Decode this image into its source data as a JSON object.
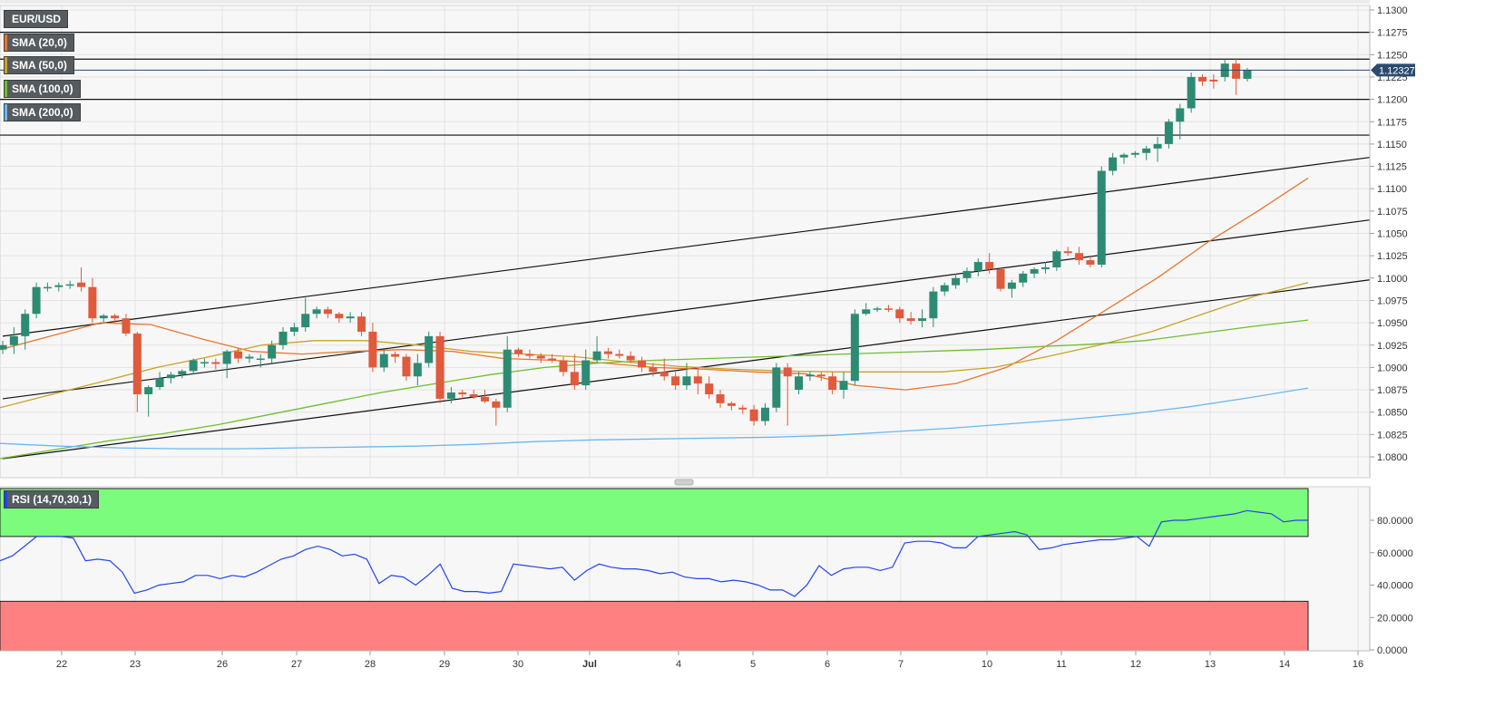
{
  "price_panel": {
    "symbol": "EUR/USD",
    "last_price_label": "1.12327",
    "last_price": 1.12327,
    "indicators": [
      {
        "label": "SMA (20,0)",
        "color": "#e8762d"
      },
      {
        "label": "SMA (50,0)",
        "color": "#c9a227"
      },
      {
        "label": "SMA (100,0)",
        "color": "#6fbe2e"
      },
      {
        "label": "SMA (200,0)",
        "color": "#6ab8f0"
      }
    ]
  },
  "rsi_panel": {
    "label": "RSI (14,70,30,1)",
    "overbought": 70,
    "oversold": 30,
    "line_color": "#2244ee",
    "overbought_color": "#7cfc7c",
    "oversold_color": "#ff8080",
    "y_ticks": [
      "0.0000",
      "20.0000",
      "40.0000",
      "60.0000",
      "80.0000"
    ]
  },
  "chart_data": {
    "type": "candlestick",
    "title": "",
    "x_tick_labels": [
      "22",
      "23",
      "26",
      "27",
      "28",
      "29",
      "30",
      "Jul",
      "4",
      "5",
      "6",
      "7",
      "10",
      "11",
      "12",
      "13",
      "14",
      "16"
    ],
    "y_ticks": [
      "1.0800",
      "1.0825",
      "1.0850",
      "1.0875",
      "1.0900",
      "1.0925",
      "1.0950",
      "1.0975",
      "1.1000",
      "1.1025",
      "1.1050",
      "1.1075",
      "1.1100",
      "1.1125",
      "1.1150",
      "1.1175",
      "1.1200",
      "1.1225",
      "1.1250",
      "1.1275",
      "1.1300"
    ],
    "ylim": [
      1.079,
      1.1305
    ],
    "colors": {
      "up": "#2e8b73",
      "down": "#e05a3c"
    },
    "candles": [
      [
        1.092,
        1.093,
        1.0915,
        1.0925
      ],
      [
        1.0925,
        1.0945,
        1.0915,
        1.0935
      ],
      [
        1.0935,
        1.0965,
        1.092,
        1.096
      ],
      [
        1.096,
        1.0995,
        1.0955,
        1.099
      ],
      [
        1.099,
        1.0995,
        1.0985,
        1.099
      ],
      [
        1.099,
        1.0995,
        1.0985,
        1.0992
      ],
      [
        1.0993,
        1.0997,
        1.0988,
        1.0993
      ],
      [
        1.0995,
        1.1012,
        1.0985,
        1.099
      ],
      [
        1.099,
        1.1,
        1.095,
        1.0955
      ],
      [
        1.0955,
        1.096,
        1.095,
        1.0958
      ],
      [
        1.0958,
        1.096,
        1.095,
        1.0955
      ],
      [
        1.0955,
        1.096,
        1.0935,
        1.0938
      ],
      [
        1.0938,
        1.094,
        1.085,
        1.087
      ],
      [
        1.087,
        1.088,
        1.0845,
        1.0878
      ],
      [
        1.0878,
        1.0895,
        1.0875,
        1.0888
      ],
      [
        1.0888,
        1.0895,
        1.0882,
        1.0892
      ],
      [
        1.0892,
        1.0898,
        1.0888,
        1.0896
      ],
      [
        1.0896,
        1.091,
        1.0892,
        1.0908
      ],
      [
        1.0906,
        1.091,
        1.09,
        1.0906
      ],
      [
        1.0906,
        1.091,
        1.0898,
        1.0904
      ],
      [
        1.0904,
        1.092,
        1.0888,
        1.0918
      ],
      [
        1.0918,
        1.0922,
        1.0905,
        1.091
      ],
      [
        1.091,
        1.0915,
        1.0905,
        1.0912
      ],
      [
        1.091,
        1.0915,
        1.09,
        1.091
      ],
      [
        1.091,
        1.093,
        1.0905,
        1.0925
      ],
      [
        1.0925,
        1.0945,
        1.092,
        1.094
      ],
      [
        1.094,
        1.095,
        1.0935,
        1.0945
      ],
      [
        1.0945,
        1.0978,
        1.094,
        1.096
      ],
      [
        1.096,
        1.0968,
        1.0955,
        1.0965
      ],
      [
        1.0965,
        1.0968,
        1.0955,
        1.096
      ],
      [
        1.096,
        1.0962,
        1.095,
        1.0955
      ],
      [
        1.0955,
        1.0962,
        1.095,
        1.0957
      ],
      [
        1.0957,
        1.0962,
        1.0935,
        1.094
      ],
      [
        1.094,
        1.095,
        1.0895,
        1.09
      ],
      [
        1.09,
        1.092,
        1.0895,
        1.0915
      ],
      [
        1.0915,
        1.0918,
        1.0905,
        1.0912
      ],
      [
        1.0912,
        1.0915,
        1.0885,
        1.089
      ],
      [
        1.089,
        1.0915,
        1.088,
        1.0905
      ],
      [
        1.0905,
        1.094,
        1.09,
        1.0935
      ],
      [
        1.0935,
        1.094,
        1.086,
        1.0865
      ],
      [
        1.0865,
        1.0878,
        1.086,
        1.0872
      ],
      [
        1.0872,
        1.0875,
        1.0865,
        1.087
      ],
      [
        1.087,
        1.0875,
        1.0865,
        1.0867
      ],
      [
        1.0867,
        1.0875,
        1.086,
        1.0862
      ],
      [
        1.0862,
        1.0865,
        1.0835,
        1.0855
      ],
      [
        1.0855,
        1.0935,
        1.085,
        1.092
      ],
      [
        1.092,
        1.0922,
        1.0912,
        1.0915
      ],
      [
        1.0915,
        1.092,
        1.091,
        1.0913
      ],
      [
        1.0913,
        1.0916,
        1.0905,
        1.091
      ],
      [
        1.091,
        1.0915,
        1.0905,
        1.0908
      ],
      [
        1.0908,
        1.0912,
        1.089,
        1.0895
      ],
      [
        1.0895,
        1.0915,
        1.0875,
        1.088
      ],
      [
        1.088,
        1.092,
        1.0875,
        1.0908
      ],
      [
        1.0908,
        1.0935,
        1.0905,
        1.0918
      ],
      [
        1.0918,
        1.0922,
        1.091,
        1.0915
      ],
      [
        1.0915,
        1.092,
        1.091,
        1.0913
      ],
      [
        1.0913,
        1.0918,
        1.0905,
        1.0908
      ],
      [
        1.0908,
        1.0912,
        1.0895,
        1.09
      ],
      [
        1.09,
        1.0905,
        1.089,
        1.0895
      ],
      [
        1.0895,
        1.091,
        1.0885,
        1.089
      ],
      [
        1.089,
        1.0895,
        1.0875,
        1.088
      ],
      [
        1.088,
        1.0905,
        1.0875,
        1.089
      ],
      [
        1.089,
        1.09,
        1.087,
        1.0882
      ],
      [
        1.0882,
        1.089,
        1.0865,
        1.087
      ],
      [
        1.087,
        1.0875,
        1.0855,
        1.086
      ],
      [
        1.086,
        1.0862,
        1.0852,
        1.0857
      ],
      [
        1.0855,
        1.0858,
        1.0848,
        1.0853
      ],
      [
        1.0853,
        1.0858,
        1.0835,
        1.084
      ],
      [
        1.084,
        1.086,
        1.0835,
        1.0855
      ],
      [
        1.0855,
        1.0905,
        1.085,
        1.09
      ],
      [
        1.09,
        1.0905,
        1.0835,
        1.089
      ],
      [
        1.0875,
        1.0895,
        1.087,
        1.089
      ],
      [
        1.089,
        1.0895,
        1.0885,
        1.0892
      ],
      [
        1.0892,
        1.0895,
        1.0885,
        1.089
      ],
      [
        1.089,
        1.0895,
        1.087,
        1.0875
      ],
      [
        1.0875,
        1.0895,
        1.0865,
        1.0885
      ],
      [
        1.0885,
        1.0965,
        1.088,
        1.096
      ],
      [
        1.096,
        1.0972,
        1.0958,
        1.0965
      ],
      [
        1.0965,
        1.0968,
        1.0962,
        1.0966
      ],
      [
        1.0966,
        1.097,
        1.0962,
        1.0965
      ],
      [
        1.0965,
        1.0968,
        1.095,
        1.0955
      ],
      [
        1.0955,
        1.0962,
        1.0948,
        1.0952
      ],
      [
        1.0952,
        1.0965,
        1.0945,
        1.0955
      ],
      [
        1.0955,
        1.099,
        1.0945,
        1.0985
      ],
      [
        1.0985,
        1.0995,
        1.098,
        1.0992
      ],
      [
        1.0992,
        1.1005,
        1.0988,
        1.1
      ],
      [
        1.1,
        1.1012,
        1.0995,
        1.1008
      ],
      [
        1.1008,
        1.1022,
        1.1002,
        1.1018
      ],
      [
        1.1018,
        1.1028,
        1.1005,
        1.101
      ],
      [
        1.101,
        1.1012,
        1.0985,
        1.0988
      ],
      [
        1.0988,
        1.0998,
        1.0978,
        1.0995
      ],
      [
        1.0995,
        1.1008,
        1.099,
        1.1005
      ],
      [
        1.1005,
        1.1012,
        1.1,
        1.101
      ],
      [
        1.101,
        1.1018,
        1.1005,
        1.1012
      ],
      [
        1.1012,
        1.1032,
        1.1008,
        1.103
      ],
      [
        1.103,
        1.1035,
        1.1025,
        1.1028
      ],
      [
        1.1028,
        1.1035,
        1.1015,
        1.102
      ],
      [
        1.102,
        1.1025,
        1.1012,
        1.1015
      ],
      [
        1.1015,
        1.1125,
        1.1012,
        1.112
      ],
      [
        1.112,
        1.114,
        1.1115,
        1.1135
      ],
      [
        1.1135,
        1.114,
        1.1128,
        1.1138
      ],
      [
        1.1138,
        1.1142,
        1.1135,
        1.114
      ],
      [
        1.114,
        1.1148,
        1.1132,
        1.1145
      ],
      [
        1.1145,
        1.1158,
        1.113,
        1.115
      ],
      [
        1.115,
        1.1178,
        1.1145,
        1.1175
      ],
      [
        1.1175,
        1.1195,
        1.1155,
        1.119
      ],
      [
        1.119,
        1.123,
        1.1185,
        1.1225
      ],
      [
        1.1225,
        1.1228,
        1.1215,
        1.122
      ],
      [
        1.1222,
        1.1228,
        1.1212,
        1.122
      ],
      [
        1.1225,
        1.1245,
        1.122,
        1.124
      ],
      [
        1.124,
        1.1245,
        1.1205,
        1.1223
      ],
      [
        1.1223,
        1.1235,
        1.122,
        1.1233
      ]
    ],
    "sma20": [
      1.092,
      1.0935,
      1.095,
      1.0948,
      1.0932,
      1.0918,
      1.0915,
      1.0918,
      1.092,
      1.0918,
      1.091,
      1.0908,
      1.0905,
      1.09,
      1.0898,
      1.0895,
      1.0893,
      1.088,
      1.0875,
      1.0882,
      1.09,
      1.093,
      1.0965,
      1.1,
      1.104,
      1.1075,
      1.1112
    ],
    "sma50": [
      1.0855,
      1.087,
      1.0885,
      1.09,
      1.0912,
      1.0925,
      1.093,
      1.093,
      1.0925,
      1.0918,
      1.0915,
      1.0912,
      1.0906,
      1.0901,
      1.0898,
      1.0896,
      1.0895,
      1.0895,
      1.0895,
      1.09,
      1.0912,
      1.0925,
      1.094,
      1.096,
      1.098,
      1.0995
    ],
    "sma100": [
      1.0798,
      1.0808,
      1.0818,
      1.0826,
      1.0836,
      1.0848,
      1.086,
      1.0872,
      1.0882,
      1.0892,
      1.09,
      1.0905,
      1.0908,
      1.091,
      1.0912,
      1.0914,
      1.0916,
      1.0918,
      1.092,
      1.0923,
      1.0926,
      1.093,
      1.0938,
      1.0946,
      1.0953
    ],
    "sma200": [
      1.0815,
      1.0812,
      1.081,
      1.0809,
      1.0809,
      1.081,
      1.0811,
      1.0812,
      1.0814,
      1.0817,
      1.0819,
      1.082,
      1.0821,
      1.0822,
      1.0824,
      1.0828,
      1.0832,
      1.0837,
      1.0842,
      1.0848,
      1.0856,
      1.0866,
      1.0877
    ],
    "horizontal_levels": [
      1.1275,
      1.1245,
      1.12,
      1.116
    ],
    "trend_lines": [
      [
        [
          0,
          1.0935
        ],
        [
          190,
          1.1135
        ]
      ],
      [
        [
          0,
          1.0865
        ],
        [
          190,
          1.1065
        ]
      ],
      [
        [
          0,
          1.0798
        ],
        [
          190,
          1.0998
        ]
      ]
    ],
    "rsi": [
      55,
      58,
      64,
      70,
      70,
      70,
      69,
      55,
      56,
      55,
      48,
      35,
      37,
      40,
      41,
      42,
      46,
      46,
      44,
      46,
      45,
      48,
      52,
      56,
      58,
      62,
      64,
      62,
      58,
      59,
      56,
      41,
      46,
      45,
      40,
      46,
      53,
      38,
      36,
      36,
      35,
      36,
      53,
      52,
      51,
      50,
      51,
      43,
      49,
      53,
      51,
      50,
      50,
      49,
      47,
      48,
      45,
      44,
      44,
      42,
      43,
      42,
      40,
      37,
      37,
      33,
      40,
      52,
      46,
      50,
      51,
      51,
      49,
      51,
      66,
      67,
      67,
      66,
      63,
      63,
      70,
      71,
      72,
      73,
      71,
      62,
      63,
      65,
      66,
      67,
      68,
      68,
      69,
      70,
      64,
      79,
      80,
      80,
      81,
      82,
      83,
      84,
      86,
      85,
      84,
      79,
      80,
      80
    ]
  }
}
